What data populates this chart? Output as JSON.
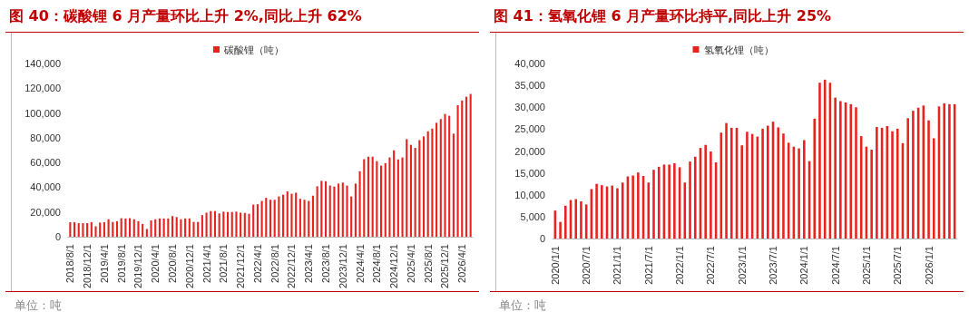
{
  "chart_data": [
    {
      "type": "bar",
      "title": "图 40：碳酸锂 6 月产量环比上升 2%,同比上升 62%",
      "annotations": [
        "单位：吨"
      ],
      "legend": "top",
      "grid": false,
      "categories": [
        "2018/8/1",
        null,
        null,
        null,
        "2018/12/1",
        null,
        null,
        null,
        "2019/4/1",
        null,
        null,
        null,
        "2019/8/1",
        null,
        null,
        null,
        "2019/12/1",
        null,
        null,
        null,
        "2020/4/1",
        null,
        null,
        null,
        "2020/8/1",
        null,
        null,
        null,
        "2020/12/1",
        null,
        null,
        null,
        "2021/4/1",
        null,
        null,
        null,
        "2021/8/1",
        null,
        null,
        null,
        "2021/12/1",
        null,
        null,
        null,
        "2022/4/1",
        null,
        null,
        null,
        "2022/8/1",
        null,
        null,
        null,
        "2022/12/1",
        null,
        null,
        null,
        "2023/4/1",
        null,
        null,
        null,
        "2023/8/1",
        null,
        null,
        null,
        "2023/12/1",
        null,
        null,
        null,
        "2024/4/1",
        null,
        null,
        null,
        "2024/8/1",
        null,
        null,
        null,
        "2024/12/1",
        null,
        null,
        null,
        "2025/4/1",
        null,
        null,
        null,
        "2025/8/1",
        null,
        null,
        null,
        "2025/12/1",
        null,
        null,
        null,
        "2026/4/1",
        null,
        null
      ],
      "ylim": [
        0,
        140000
      ],
      "yticks": [
        {
          "value": 0,
          "label": "0"
        },
        {
          "value": 20000,
          "label": "20,000"
        },
        {
          "value": 40000,
          "label": "40,000"
        },
        {
          "value": 60000,
          "label": "60,000"
        },
        {
          "value": 80000,
          "label": "80,000"
        },
        {
          "value": 100000,
          "label": "100,000"
        },
        {
          "value": 120000,
          "label": "120,000"
        },
        {
          "value": 140000,
          "label": "140,000"
        }
      ],
      "series": [
        {
          "name": "碳酸锂（吨）",
          "color": "#e8231f",
          "values": [
            11800,
            11800,
            11000,
            11000,
            11000,
            11800,
            8500,
            11500,
            11800,
            14200,
            12000,
            12600,
            15000,
            14800,
            15000,
            14200,
            12600,
            10400,
            6300,
            13200,
            14200,
            14800,
            14800,
            14800,
            16700,
            15900,
            14200,
            14800,
            14800,
            12000,
            12000,
            17500,
            19500,
            20800,
            20800,
            18900,
            20300,
            20000,
            20000,
            20300,
            19500,
            19200,
            18600,
            26000,
            26300,
            29000,
            31500,
            29900,
            29900,
            32600,
            34000,
            36700,
            34800,
            35600,
            30700,
            29900,
            29000,
            33200,
            40800,
            45200,
            44900,
            41400,
            40600,
            43000,
            43800,
            41400,
            32600,
            43000,
            52900,
            62700,
            64700,
            64700,
            61100,
            57500,
            59500,
            64100,
            69900,
            62500,
            64100,
            78900,
            74300,
            71800,
            78100,
            81100,
            85200,
            87400,
            92100,
            95100,
            99200,
            97800,
            83300,
            106300,
            110100,
            113200,
            115400
          ]
        }
      ]
    },
    {
      "type": "bar",
      "title": "图 41：氢氧化锂 6 月产量环比持平,同比上升 25%",
      "annotations": [
        "单位：吨"
      ],
      "legend": "top",
      "grid": false,
      "categories": [
        "2020/1/1",
        null,
        null,
        null,
        null,
        null,
        "2020/7/1",
        null,
        null,
        null,
        null,
        null,
        "2021/1/1",
        null,
        null,
        null,
        null,
        null,
        "2021/7/1",
        null,
        null,
        null,
        null,
        null,
        "2022/1/1",
        null,
        null,
        null,
        null,
        null,
        "2022/7/1",
        null,
        null,
        null,
        null,
        null,
        "2023/1/1",
        null,
        null,
        null,
        null,
        null,
        "2023/7/1",
        null,
        null,
        null,
        null,
        null,
        "2024/1/1",
        null,
        null,
        null,
        null,
        null,
        "2024/7/1",
        null,
        null,
        null,
        null,
        null,
        "2025/1/1",
        null,
        null,
        null,
        null,
        null,
        "2025/7/1",
        null,
        null,
        null,
        null,
        null,
        "2026/1/1",
        null,
        null,
        null,
        null,
        null
      ],
      "ylim": [
        0,
        40000
      ],
      "yticks": [
        {
          "value": 0,
          "label": "0"
        },
        {
          "value": 5000,
          "label": "5,000"
        },
        {
          "value": 10000,
          "label": "10,000"
        },
        {
          "value": 15000,
          "label": "15,000"
        },
        {
          "value": 20000,
          "label": "20,000"
        },
        {
          "value": 25000,
          "label": "25,000"
        },
        {
          "value": 30000,
          "label": "30,000"
        },
        {
          "value": 35000,
          "label": "35,000"
        },
        {
          "value": 40000,
          "label": "40,000"
        }
      ],
      "series": [
        {
          "name": "氢氧化锂（吨）",
          "color": "#e8231f",
          "values": [
            6400,
            3800,
            7500,
            8800,
            9000,
            8500,
            7800,
            11300,
            12500,
            12200,
            11900,
            12100,
            11500,
            12800,
            14200,
            14400,
            15100,
            14300,
            12800,
            15700,
            16400,
            16900,
            16900,
            17200,
            16300,
            12800,
            17600,
            18700,
            20700,
            21400,
            19900,
            17400,
            24200,
            26400,
            25300,
            25300,
            21300,
            24400,
            23900,
            23300,
            25100,
            25800,
            26700,
            25400,
            24000,
            21900,
            21000,
            20600,
            22500,
            17700,
            27400,
            35600,
            36300,
            35600,
            32200,
            31400,
            31100,
            30700,
            30000,
            23400,
            21000,
            20300,
            25500,
            25300,
            25700,
            24500,
            25100,
            21800,
            27500,
            29200,
            29900,
            30400,
            27000,
            22900,
            30200,
            30900,
            30700,
            30700
          ]
        }
      ]
    }
  ]
}
